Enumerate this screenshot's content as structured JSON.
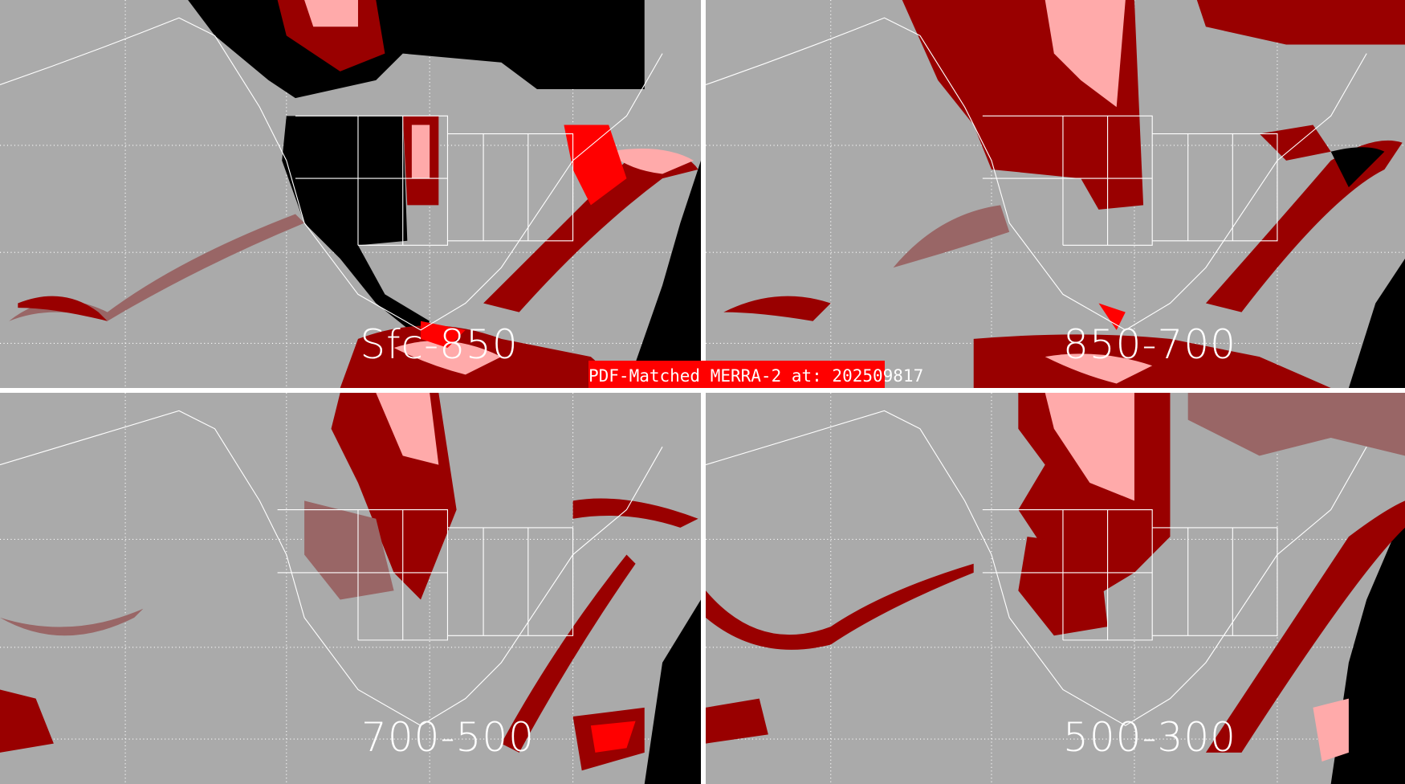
{
  "title": "PDF-Matched MERRA-2 at: 202509817",
  "panels": [
    {
      "label": "Sfc-850"
    },
    {
      "label": "850-700"
    },
    {
      "label": "700-500"
    },
    {
      "label": "500-300"
    }
  ],
  "colors": {
    "background": "#aaaaaa",
    "dark_red": "#990000",
    "red": "#ff0000",
    "pink": "#ffaaaa",
    "mauve": "#996666",
    "no_data": "#000000",
    "coastlines": "#ffffff",
    "title_box": "#ff0000"
  }
}
